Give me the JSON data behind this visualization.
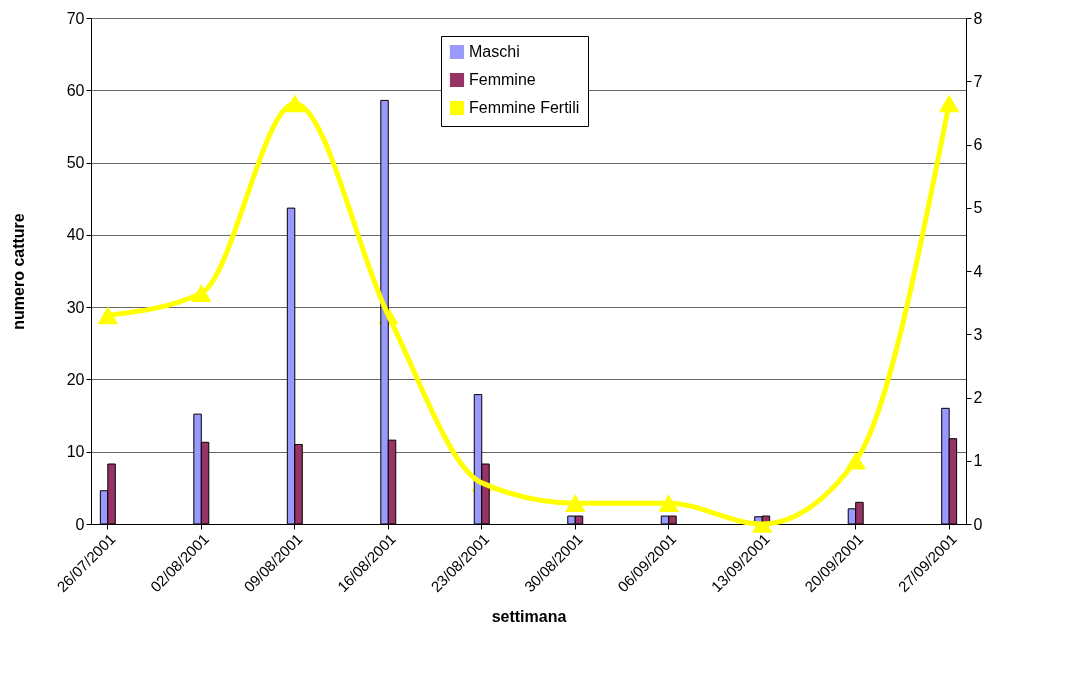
{
  "chart_data": {
    "type": "bar",
    "xlabel": "settimana",
    "ylabel": "numero catture",
    "categories": [
      "26/07/2001",
      "02/08/2001",
      "09/08/2001",
      "16/08/2001",
      "23/08/2001",
      "30/08/2001",
      "06/09/2001",
      "13/09/2001",
      "20/09/2001",
      "27/09/2001"
    ],
    "series": [
      {
        "name": "Maschi",
        "color": "#9999ff",
        "values": [
          4.6,
          15.2,
          43.7,
          58.6,
          17.9,
          1.1,
          1.1,
          1.0,
          2.1,
          16.0
        ]
      },
      {
        "name": "Femmine",
        "color": "#993366",
        "values": [
          8.3,
          11.3,
          11.0,
          11.6,
          8.3,
          1.1,
          1.1,
          1.1,
          3.0,
          11.8
        ]
      },
      {
        "name": "Femmine Fertili",
        "type": "line",
        "axis": "y2",
        "color": "#ffff00",
        "marker": "triangle",
        "values": [
          3.3,
          3.65,
          6.65,
          3.3,
          0.65,
          0.33,
          0.33,
          0,
          1.0,
          6.65
        ]
      }
    ],
    "ylim": [
      0,
      70
    ],
    "yticks": [
      0,
      10,
      20,
      30,
      40,
      50,
      60,
      70
    ],
    "y2lim": [
      0,
      8
    ],
    "y2ticks": [
      0,
      1,
      2,
      3,
      4,
      5,
      6,
      7,
      8
    ],
    "grid": "y",
    "legend": "top"
  }
}
